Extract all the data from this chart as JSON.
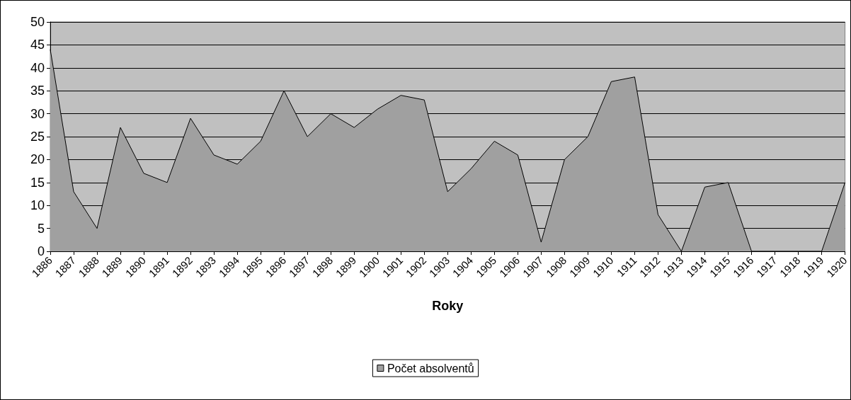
{
  "chart_data": {
    "type": "area",
    "xlabel": "Roky",
    "categories": [
      "1886",
      "1887",
      "1888",
      "1889",
      "1890",
      "1891",
      "1892",
      "1893",
      "1894",
      "1895",
      "1896",
      "1897",
      "1898",
      "1899",
      "1900",
      "1901",
      "1902",
      "1903",
      "1904",
      "1905",
      "1906",
      "1907",
      "1908",
      "1909",
      "1910",
      "1911",
      "1912",
      "1913",
      "1914",
      "1915",
      "1916",
      "1917",
      "1918",
      "1919",
      "1920"
    ],
    "series": [
      {
        "name": "Počet absolventů",
        "color": "#a0a0a0",
        "values": [
          44,
          13,
          5,
          27,
          17,
          15,
          29,
          21,
          19,
          24,
          35,
          25,
          30,
          27,
          31,
          34,
          33,
          13,
          18,
          24,
          21,
          2,
          20,
          25,
          37,
          38,
          8,
          0,
          14,
          15,
          0,
          0,
          0,
          0,
          15
        ]
      }
    ],
    "ylim": [
      0,
      50
    ],
    "yticks": [
      0,
      5,
      10,
      15,
      20,
      25,
      30,
      35,
      40,
      45,
      50
    ],
    "grid": "y",
    "legend": "bottom",
    "marker": "none",
    "line_style": "solid"
  }
}
